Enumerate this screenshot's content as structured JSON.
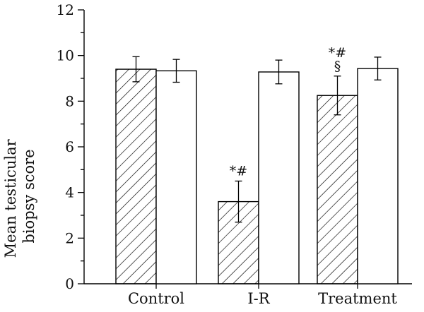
{
  "chart_data": {
    "type": "bar",
    "categories": [
      "Control",
      "I-R",
      "Treatment"
    ],
    "ylabel_lines": [
      "Mean testicular",
      "biopsy score"
    ],
    "ylim": [
      0,
      12
    ],
    "yticks": [
      "0",
      "2",
      "4",
      "6",
      "8",
      "10",
      "12"
    ],
    "grid": false,
    "series": [
      {
        "pattern": "hatched",
        "values": [
          9.4,
          3.6,
          8.25
        ],
        "errors": [
          0.55,
          0.9,
          0.85
        ]
      },
      {
        "pattern": "open",
        "values": [
          9.33,
          9.28,
          9.43
        ],
        "errors": [
          0.5,
          0.52,
          0.5
        ]
      }
    ],
    "annotations": [
      {
        "category": "I-R",
        "series": 0,
        "lines": [
          "*#"
        ]
      },
      {
        "category": "Treatment",
        "series": 0,
        "lines": [
          "*#",
          "§"
        ]
      }
    ],
    "colors": {
      "bar_fill": "#ffffff",
      "stroke": "#000000"
    }
  }
}
